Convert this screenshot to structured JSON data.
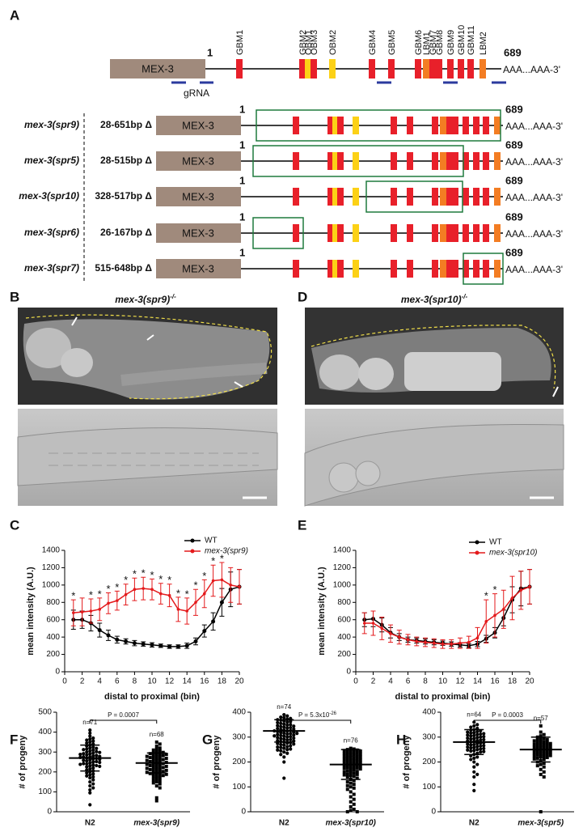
{
  "panel_labels": [
    "A",
    "B",
    "C",
    "D",
    "E",
    "F",
    "G",
    "H"
  ],
  "gene_map": {
    "protein": "MEX-3",
    "start": 1,
    "end": 689,
    "tail": "AAA...AAA-3'",
    "grna": "gRNA",
    "motifs": [
      "GBM1",
      "GBM2",
      "OBM1",
      "OBM3",
      "OBM2",
      "GBM4",
      "GBM5",
      "GBM6",
      "LBM1",
      "GBM7",
      "GBM8",
      "GBM9",
      "GBM10",
      "GBM11",
      "LBM2"
    ],
    "alleles": [
      {
        "name": "mex-3(spr9)",
        "deletion": "28-651bp Δ"
      },
      {
        "name": "mex-3(spr5)",
        "deletion": "28-515bp Δ"
      },
      {
        "name": "mex-3(spr10)",
        "deletion": "328-517bp Δ"
      },
      {
        "name": "mex-3(spr6)",
        "deletion": "26-167bp Δ"
      },
      {
        "name": "mex-3(spr7)",
        "deletion": "515-648bp Δ"
      }
    ]
  },
  "micrographs": [
    {
      "title": "mex-3(spr9)",
      "superscript": "-/-"
    },
    {
      "title": "mex-3(spr10)",
      "superscript": "-/-"
    }
  ],
  "chart_data": [
    {
      "type": "line",
      "xlabel": "distal to proximal (bin)",
      "ylabel": "mean intensity (A.U.)",
      "xlim": [
        0,
        20
      ],
      "xticks": [
        0,
        2,
        4,
        6,
        8,
        10,
        12,
        14,
        16,
        18,
        20
      ],
      "ylim": [
        0,
        1400
      ],
      "yticks": [
        0,
        200,
        400,
        600,
        800,
        1000,
        1200,
        1400
      ],
      "x": [
        1,
        2,
        3,
        4,
        5,
        6,
        7,
        8,
        9,
        10,
        11,
        12,
        13,
        14,
        15,
        16,
        17,
        18,
        19,
        20
      ],
      "series": [
        {
          "name": "WT",
          "color": "#000000",
          "values": [
            600,
            600,
            560,
            480,
            420,
            370,
            350,
            330,
            320,
            310,
            300,
            290,
            290,
            300,
            350,
            470,
            580,
            800,
            950,
            980
          ],
          "errors": [
            110,
            100,
            90,
            80,
            60,
            40,
            30,
            30,
            25,
            25,
            20,
            20,
            20,
            30,
            40,
            70,
            100,
            160,
            200,
            200
          ]
        },
        {
          "name": "mex-3(spr9)",
          "color": "#e41a1c",
          "values": [
            680,
            690,
            700,
            720,
            790,
            820,
            890,
            950,
            960,
            950,
            900,
            880,
            720,
            700,
            800,
            900,
            1050,
            1060,
            1000,
            980
          ],
          "errors": [
            150,
            160,
            140,
            130,
            120,
            110,
            120,
            130,
            130,
            120,
            120,
            130,
            140,
            150,
            150,
            160,
            180,
            200,
            200,
            200
          ]
        }
      ],
      "star": "*",
      "star_bins": [
        1,
        3,
        4,
        5,
        6,
        7,
        8,
        9,
        10,
        11,
        12,
        13,
        14,
        15,
        16,
        17,
        18
      ]
    },
    {
      "type": "line",
      "xlabel": "distal to proximal (bin)",
      "ylabel": "mean intensity (A.U.)",
      "xlim": [
        0,
        20
      ],
      "xticks": [
        0,
        2,
        4,
        6,
        8,
        10,
        12,
        14,
        16,
        18,
        20
      ],
      "ylim": [
        0,
        1400
      ],
      "yticks": [
        0,
        200,
        400,
        600,
        800,
        1000,
        1200,
        1400
      ],
      "x": [
        1,
        2,
        3,
        4,
        5,
        6,
        7,
        8,
        9,
        10,
        11,
        12,
        13,
        14,
        15,
        16,
        17,
        18,
        19,
        20
      ],
      "series": [
        {
          "name": "WT",
          "color": "#000000",
          "values": [
            600,
            610,
            540,
            450,
            400,
            370,
            360,
            350,
            340,
            330,
            320,
            310,
            300,
            320,
            380,
            450,
            620,
            830,
            960,
            980
          ],
          "errors": [
            80,
            90,
            80,
            60,
            40,
            30,
            30,
            30,
            30,
            25,
            25,
            25,
            25,
            30,
            40,
            60,
            90,
            150,
            200,
            200
          ]
        },
        {
          "name": "mex-3(spr10)",
          "color": "#e41a1c",
          "values": [
            560,
            560,
            500,
            440,
            400,
            370,
            350,
            340,
            330,
            320,
            320,
            330,
            340,
            390,
            580,
            650,
            720,
            850,
            940,
            980
          ],
          "errors": [
            120,
            140,
            130,
            100,
            80,
            60,
            50,
            50,
            50,
            50,
            50,
            60,
            70,
            120,
            250,
            250,
            220,
            250,
            220,
            200
          ]
        }
      ],
      "star": "*",
      "star_bins": [
        15,
        16
      ]
    },
    {
      "type": "dot",
      "ylabel": "# of progeny",
      "ylim": [
        0,
        500
      ],
      "yticks": [
        0,
        100,
        200,
        300,
        400,
        500
      ],
      "categories": [
        "N2",
        "mex-3(spr9)"
      ],
      "p_label": "P = 0.0007",
      "groups": [
        {
          "n_label": "n=71",
          "mean": 270,
          "sd": 65,
          "values": [
            410,
            395,
            380,
            370,
            365,
            360,
            355,
            350,
            345,
            340,
            335,
            330,
            325,
            320,
            318,
            315,
            312,
            310,
            305,
            302,
            300,
            298,
            295,
            292,
            290,
            288,
            285,
            283,
            280,
            278,
            276,
            275,
            273,
            270,
            268,
            265,
            263,
            260,
            258,
            255,
            252,
            250,
            248,
            245,
            242,
            240,
            238,
            235,
            232,
            230,
            228,
            225,
            220,
            215,
            210,
            205,
            200,
            195,
            190,
            185,
            180,
            175,
            170,
            160,
            150,
            140,
            130,
            120,
            110,
            95,
            35
          ]
        },
        {
          "n_label": "n=68",
          "mean": 245,
          "sd": 50,
          "values": [
            350,
            340,
            330,
            320,
            315,
            310,
            305,
            300,
            298,
            295,
            292,
            290,
            288,
            285,
            282,
            280,
            278,
            275,
            272,
            270,
            268,
            265,
            262,
            260,
            258,
            255,
            252,
            250,
            248,
            245,
            242,
            240,
            238,
            235,
            232,
            230,
            228,
            225,
            222,
            220,
            218,
            215,
            212,
            210,
            208,
            205,
            202,
            200,
            198,
            195,
            192,
            190,
            188,
            185,
            182,
            180,
            175,
            170,
            165,
            160,
            155,
            150,
            145,
            140,
            130,
            120,
            70,
            55
          ]
        }
      ]
    },
    {
      "type": "dot",
      "ylabel": "# of progeny",
      "ylim": [
        0,
        400
      ],
      "yticks": [
        0,
        100,
        200,
        300,
        400
      ],
      "categories": [
        "N2",
        "mex-3(spr10)"
      ],
      "p_label": "P = 5.3x10",
      "p_exponent": "-26",
      "groups": [
        {
          "n_label": "n=74",
          "mean": 325,
          "sd": 45,
          "values": [
            390,
            385,
            380,
            378,
            375,
            372,
            370,
            368,
            365,
            362,
            360,
            358,
            355,
            352,
            350,
            348,
            346,
            344,
            342,
            340,
            338,
            336,
            334,
            332,
            330,
            328,
            326,
            325,
            324,
            322,
            320,
            318,
            316,
            315,
            314,
            312,
            310,
            308,
            306,
            305,
            304,
            302,
            300,
            298,
            296,
            294,
            292,
            290,
            288,
            286,
            284,
            282,
            280,
            278,
            276,
            274,
            272,
            270,
            268,
            265,
            262,
            260,
            258,
            255,
            252,
            250,
            248,
            245,
            240,
            235,
            230,
            220,
            200,
            135
          ]
        },
        {
          "n_label": "n=76",
          "mean": 190,
          "sd": 60,
          "values": [
            255,
            252,
            250,
            248,
            246,
            244,
            242,
            240,
            238,
            236,
            234,
            232,
            230,
            228,
            226,
            224,
            222,
            220,
            218,
            216,
            214,
            212,
            210,
            208,
            206,
            204,
            202,
            200,
            198,
            196,
            194,
            192,
            190,
            188,
            186,
            184,
            182,
            180,
            178,
            176,
            174,
            172,
            170,
            168,
            165,
            162,
            160,
            158,
            155,
            152,
            150,
            148,
            145,
            142,
            140,
            135,
            130,
            125,
            120,
            115,
            110,
            105,
            100,
            95,
            90,
            80,
            70,
            60,
            50,
            40,
            30,
            20,
            10,
            5,
            0,
            0
          ]
        }
      ]
    },
    {
      "type": "dot",
      "ylabel": "# of progeny",
      "ylim": [
        0,
        400
      ],
      "yticks": [
        0,
        100,
        200,
        300,
        400
      ],
      "categories": [
        "N2",
        "mex-3(spr5)"
      ],
      "p_label": "P = 0.0003",
      "groups": [
        {
          "n_label": "n=64",
          "mean": 280,
          "sd": 50,
          "values": [
            360,
            350,
            345,
            340,
            335,
            330,
            328,
            325,
            322,
            320,
            318,
            316,
            314,
            312,
            310,
            308,
            306,
            304,
            302,
            300,
            298,
            296,
            294,
            292,
            290,
            288,
            286,
            284,
            282,
            280,
            278,
            276,
            274,
            272,
            270,
            268,
            266,
            264,
            262,
            260,
            258,
            256,
            254,
            252,
            250,
            248,
            246,
            244,
            242,
            240,
            235,
            230,
            225,
            220,
            215,
            210,
            200,
            190,
            180,
            160,
            150,
            140,
            110,
            85
          ]
        },
        {
          "n_label": "n=57",
          "mean": 250,
          "sd": 50,
          "values": [
            345,
            320,
            310,
            305,
            300,
            295,
            292,
            290,
            288,
            285,
            282,
            280,
            278,
            276,
            274,
            272,
            270,
            268,
            266,
            264,
            262,
            260,
            258,
            256,
            254,
            252,
            250,
            248,
            246,
            244,
            242,
            240,
            238,
            236,
            234,
            232,
            230,
            228,
            226,
            224,
            222,
            220,
            218,
            215,
            212,
            210,
            205,
            200,
            195,
            190,
            185,
            180,
            170,
            160,
            150,
            140,
            0
          ]
        }
      ]
    }
  ]
}
